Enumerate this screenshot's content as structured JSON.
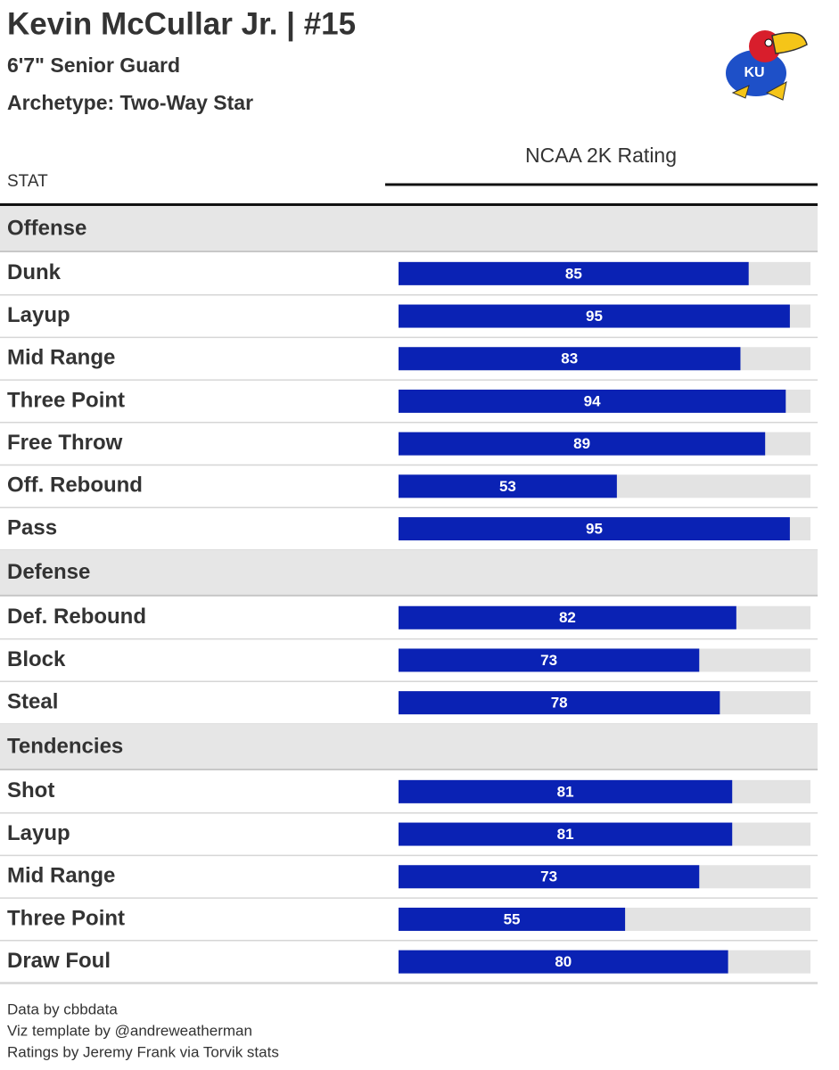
{
  "header": {
    "title": "Kevin McCullar Jr. | #15",
    "subtitle": "6'7\" Senior Guard",
    "archetype": "Archetype: Two-Way Star"
  },
  "table": {
    "stat_header": "STAT",
    "rating_header": "NCAA 2K Rating",
    "xlim": [
      0,
      100
    ],
    "bar_color": "#0a22b4",
    "track_color": "#e3e3e3",
    "groups": [
      {
        "name": "Offense",
        "rows": [
          {
            "stat": "Dunk",
            "value": 85
          },
          {
            "stat": "Layup",
            "value": 95
          },
          {
            "stat": "Mid Range",
            "value": 83
          },
          {
            "stat": "Three Point",
            "value": 94
          },
          {
            "stat": "Free Throw",
            "value": 89
          },
          {
            "stat": "Off. Rebound",
            "value": 53
          },
          {
            "stat": "Pass",
            "value": 95
          }
        ]
      },
      {
        "name": "Defense",
        "rows": [
          {
            "stat": "Def. Rebound",
            "value": 82
          },
          {
            "stat": "Block",
            "value": 73
          },
          {
            "stat": "Steal",
            "value": 78
          }
        ]
      },
      {
        "name": "Tendencies",
        "rows": [
          {
            "stat": "Shot",
            "value": 81
          },
          {
            "stat": "Layup",
            "value": 81
          },
          {
            "stat": "Mid Range",
            "value": 73
          },
          {
            "stat": "Three Point",
            "value": 55
          },
          {
            "stat": "Draw Foul",
            "value": 80
          }
        ]
      }
    ]
  },
  "footer": [
    "Data by cbbdata",
    "Viz template by @andreweatherman",
    "Ratings by Jeremy Frank via Torvik stats"
  ]
}
